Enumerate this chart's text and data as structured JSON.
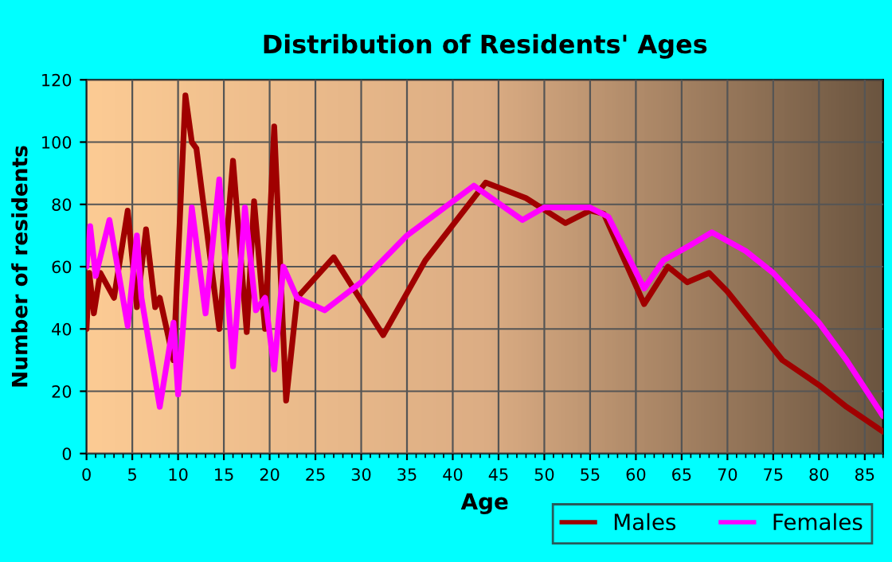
{
  "chart_data": {
    "type": "line",
    "title": "Distribution of Residents' Ages",
    "xlabel": "Age",
    "ylabel": "Number of residents",
    "xlim": [
      0,
      87
    ],
    "xticks": [
      0,
      5,
      10,
      15,
      20,
      25,
      30,
      35,
      40,
      45,
      50,
      55,
      60,
      65,
      70,
      75,
      80,
      85
    ],
    "ylim": [
      0,
      120
    ],
    "yticks": [
      0,
      20,
      40,
      60,
      80,
      100,
      120
    ],
    "grid": true,
    "legend": "bottom right",
    "line_style": "solid",
    "marker": "none",
    "series": [
      {
        "name": "Males",
        "color": "#a00000",
        "x": [
          0,
          0.3,
          0.8,
          1.5,
          3,
          4.5,
          5.5,
          6.5,
          7.5,
          8,
          9.5,
          10.8,
          11.5,
          12,
          14.5,
          16,
          17.5,
          18.3,
          19.5,
          20.5,
          21.8,
          23,
          27,
          32.4,
          37,
          43.6,
          48,
          52.3,
          55,
          56.5,
          60.9,
          63.5,
          65.6,
          68,
          70,
          76,
          80,
          83,
          87
        ],
        "values": [
          40,
          58,
          45,
          58,
          50,
          78,
          47,
          72,
          47,
          50,
          30,
          115,
          100,
          98,
          40,
          94,
          39,
          81,
          40,
          105,
          17,
          50,
          63,
          38,
          62,
          87,
          82,
          74,
          78,
          77,
          48,
          60,
          55,
          58,
          52,
          30,
          22,
          15,
          7
        ]
      },
      {
        "name": "Females",
        "color": "#ff00ff",
        "x": [
          0,
          0.4,
          1,
          2.5,
          4.5,
          5.5,
          6,
          8,
          9.5,
          10,
          11.5,
          13,
          14.5,
          16,
          17.3,
          18.5,
          19.5,
          20.5,
          21.5,
          23,
          26,
          30,
          35,
          42.3,
          47.6,
          50,
          55,
          57,
          60.9,
          63,
          66,
          68.3,
          72,
          75,
          80,
          83,
          87
        ],
        "values": [
          60,
          73,
          57,
          75,
          41,
          70,
          50,
          15,
          42,
          19,
          79,
          45,
          88,
          28,
          79,
          46,
          50,
          27,
          60,
          50,
          46,
          55,
          70,
          86,
          75,
          79,
          79,
          76,
          53,
          62,
          67,
          71,
          65,
          58,
          42,
          30,
          12
        ]
      }
    ]
  }
}
